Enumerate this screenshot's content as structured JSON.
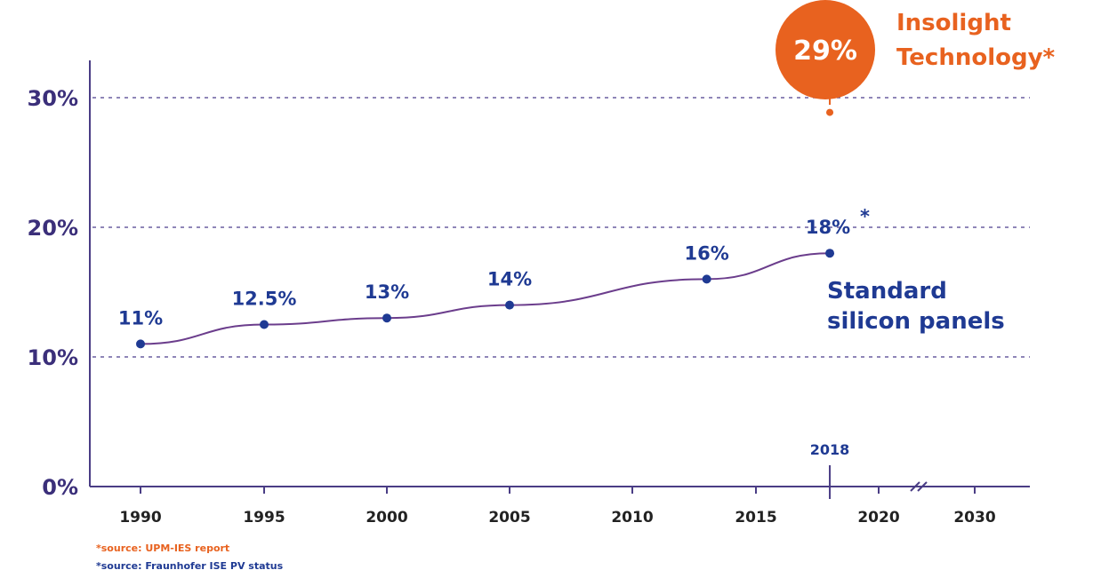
{
  "chart_data": {
    "type": "line",
    "xlabel": "",
    "ylabel": "",
    "ylim": [
      0,
      30
    ],
    "y_ticks": [
      "0%",
      "10%",
      "20%",
      "30%"
    ],
    "x_ticks": [
      "1990",
      "1995",
      "2000",
      "2005",
      "2010",
      "2015",
      "2020",
      "2030"
    ],
    "grid": "dashed horizontal lines at 10%, 20%, 30%",
    "axis_break": "between 2020 and 2030",
    "series": [
      {
        "name": "Standard silicon panels",
        "color": "#1f3a93",
        "points": [
          {
            "x": 1990,
            "y": 11,
            "label": "11%"
          },
          {
            "x": 1995,
            "y": 12.5,
            "label": "12.5%"
          },
          {
            "x": 2000,
            "y": 13,
            "label": "13%"
          },
          {
            "x": 2005,
            "y": 14,
            "label": "14%"
          },
          {
            "x": 2013,
            "y": 16,
            "label": "16%"
          },
          {
            "x": 2018,
            "y": 18,
            "label": "18%",
            "asterisk": "*"
          }
        ]
      },
      {
        "name": "Insolight Technology",
        "color": "#e8621f",
        "points": [
          {
            "x": 2018,
            "y": 29,
            "label": "29%"
          }
        ],
        "label_lines": [
          "Insolight",
          "Technology*"
        ]
      }
    ],
    "marker": {
      "x": 2018,
      "label": "2018"
    },
    "sources": [
      {
        "text": "*source: UPM-IES report",
        "color": "#e8621f"
      },
      {
        "text": "*source: Fraunhofer ISE PV status",
        "color": "#1f3a93"
      }
    ]
  }
}
